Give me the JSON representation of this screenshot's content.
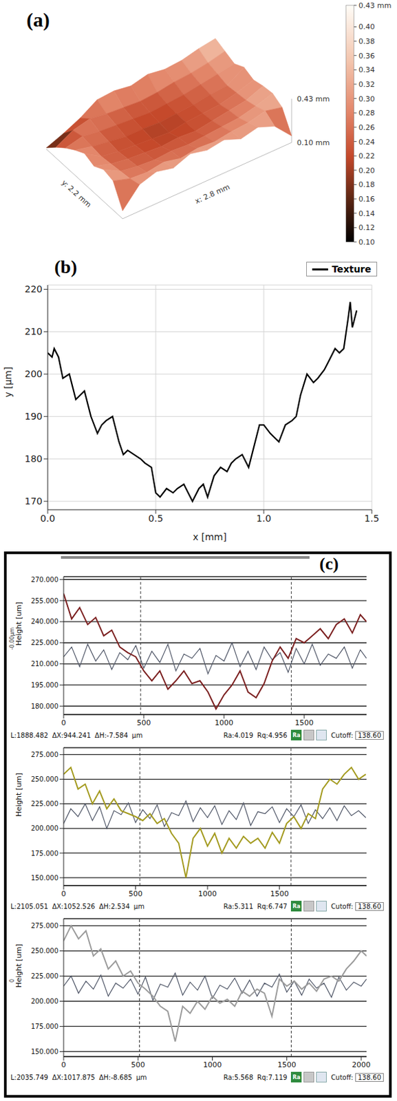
{
  "chart_data": [
    {
      "type": "surface",
      "panel": "(a)",
      "x_label": "x: 2.8 mm",
      "y_label": "y: 2.2 mm",
      "z_labels": [
        "0.43 mm",
        "0.10 mm"
      ],
      "heights": [
        [
          0.16,
          0.3,
          0.34,
          0.31,
          0.36,
          0.33,
          0.35,
          0.3,
          0.33,
          0.28,
          0.15
        ],
        [
          0.32,
          0.28,
          0.27,
          0.29,
          0.26,
          0.28,
          0.27,
          0.29,
          0.3,
          0.33,
          0.3
        ],
        [
          0.34,
          0.27,
          0.25,
          0.24,
          0.25,
          0.24,
          0.25,
          0.26,
          0.27,
          0.3,
          0.34
        ],
        [
          0.3,
          0.26,
          0.24,
          0.23,
          0.22,
          0.23,
          0.22,
          0.24,
          0.26,
          0.28,
          0.33
        ],
        [
          0.33,
          0.25,
          0.23,
          0.22,
          0.21,
          0.2,
          0.22,
          0.23,
          0.24,
          0.27,
          0.31
        ],
        [
          0.29,
          0.26,
          0.24,
          0.22,
          0.22,
          0.21,
          0.22,
          0.23,
          0.25,
          0.26,
          0.34
        ],
        [
          0.24,
          0.27,
          0.25,
          0.24,
          0.23,
          0.22,
          0.23,
          0.24,
          0.26,
          0.28,
          0.3
        ],
        [
          0.18,
          0.25,
          0.28,
          0.26,
          0.25,
          0.24,
          0.25,
          0.27,
          0.28,
          0.3,
          0.33
        ],
        [
          0.11,
          0.16,
          0.22,
          0.3,
          0.31,
          0.29,
          0.32,
          0.3,
          0.31,
          0.34,
          0.36
        ]
      ],
      "colorbar": {
        "range": [
          0.1,
          0.43
        ],
        "max_label": "0.43 mm",
        "ticks": [
          {
            "value": 0.1,
            "label": "0.10"
          },
          {
            "value": 0.12,
            "label": "0.12"
          },
          {
            "value": 0.14,
            "label": "0.14"
          },
          {
            "value": 0.16,
            "label": "0.16"
          },
          {
            "value": 0.18,
            "label": "0.18"
          },
          {
            "value": 0.2,
            "label": "0.20"
          },
          {
            "value": 0.22,
            "label": "0.22"
          },
          {
            "value": 0.24,
            "label": "0.24"
          },
          {
            "value": 0.26,
            "label": "0.26"
          },
          {
            "value": 0.28,
            "label": "0.28"
          },
          {
            "value": 0.3,
            "label": "0.30"
          },
          {
            "value": 0.32,
            "label": "0.32"
          },
          {
            "value": 0.34,
            "label": "0.34"
          },
          {
            "value": 0.36,
            "label": "0.36"
          },
          {
            "value": 0.38,
            "label": "0.38"
          },
          {
            "value": 0.4,
            "label": "0.40"
          }
        ]
      }
    },
    {
      "type": "line",
      "panel": "(b)",
      "xlabel": "x [mm]",
      "ylabel": "y [µm]",
      "x": [
        0,
        0.02,
        0.03,
        0.05,
        0.07,
        0.1,
        0.13,
        0.15,
        0.17,
        0.2,
        0.23,
        0.25,
        0.27,
        0.3,
        0.33,
        0.35,
        0.37,
        0.4,
        0.43,
        0.45,
        0.48,
        0.5,
        0.52,
        0.55,
        0.58,
        0.6,
        0.63,
        0.65,
        0.67,
        0.7,
        0.72,
        0.74,
        0.77,
        0.8,
        0.83,
        0.85,
        0.87,
        0.9,
        0.93,
        0.95,
        0.98,
        1,
        1.03,
        1.05,
        1.07,
        1.1,
        1.13,
        1.15,
        1.17,
        1.2,
        1.23,
        1.25,
        1.28,
        1.3,
        1.33,
        1.35,
        1.37,
        1.39,
        1.4,
        1.41,
        1.43
      ],
      "series": [
        {
          "name": "Texture",
          "color": "#000000",
          "values": [
            205,
            204,
            206,
            204,
            199,
            200,
            194,
            195,
            196,
            190,
            186,
            188,
            189,
            190,
            184,
            181,
            182,
            181,
            180,
            179,
            178,
            172,
            171,
            173,
            172,
            173,
            174,
            172,
            170,
            173,
            174,
            171,
            176,
            178,
            177,
            179,
            180,
            181,
            178,
            182,
            188,
            188,
            186,
            185,
            184,
            188,
            189,
            190,
            195,
            200,
            198,
            199,
            201,
            203,
            206,
            205,
            206,
            213,
            217,
            211,
            215
          ]
        }
      ],
      "xlim": [
        0,
        1.5
      ],
      "ylim": [
        168,
        221
      ],
      "xticks": [
        {
          "value": 0,
          "label": "0.0"
        },
        {
          "value": 0.5,
          "label": "0.5"
        },
        {
          "value": 1,
          "label": "1.0"
        },
        {
          "value": 1.5,
          "label": "1.5"
        }
      ],
      "yticks": [
        170,
        180,
        190,
        200,
        210,
        220
      ],
      "grid": true,
      "legend": "top-right"
    },
    {
      "type": "line",
      "panel": "(c)",
      "ylabel": "Height [um]",
      "side_label": "-0.00µm",
      "x": [
        0,
        50,
        100,
        150,
        200,
        250,
        300,
        350,
        400,
        450,
        500,
        550,
        600,
        650,
        700,
        750,
        800,
        850,
        900,
        950,
        1000,
        1050,
        1100,
        1150,
        1200,
        1250,
        1300,
        1350,
        1400,
        1450,
        1500,
        1550,
        1600,
        1650,
        1700,
        1750,
        1800,
        1850,
        1888
      ],
      "series": [
        {
          "color": "#7b1f1f",
          "values": [
            260,
            242,
            250,
            238,
            243,
            230,
            234,
            222,
            218,
            215,
            205,
            198,
            205,
            192,
            198,
            205,
            196,
            198,
            190,
            178,
            188,
            195,
            205,
            190,
            186,
            196,
            212,
            222,
            214,
            228,
            225,
            230,
            235,
            228,
            238,
            242,
            232,
            245,
            240
          ]
        },
        {
          "color": "#4e5566",
          "values": [
            215,
            222,
            208,
            224,
            212,
            220,
            206,
            218,
            213,
            223,
            207,
            219,
            211,
            224,
            205,
            217,
            214,
            221,
            203,
            216,
            212,
            225,
            208,
            219,
            206,
            222,
            213,
            218,
            204,
            221,
            210,
            224,
            209,
            217,
            214,
            222,
            207,
            220,
            214
          ]
        }
      ],
      "xlim": [
        0,
        1888.482
      ],
      "ylim": [
        174,
        272
      ],
      "xticks": [
        0,
        500,
        1000,
        1500
      ],
      "yticks": [
        {
          "value": 180,
          "label": "180.000"
        },
        {
          "value": 195,
          "label": "195.000"
        },
        {
          "value": 210,
          "label": "210.000"
        },
        {
          "value": 225,
          "label": "225.000"
        },
        {
          "value": 240,
          "label": "240.000"
        },
        {
          "value": 255,
          "label": "255.000"
        },
        {
          "value": 270,
          "label": "270.000"
        }
      ],
      "grid": "y",
      "cursors": [
        480,
        1420
      ],
      "footer": [
        "L:1888.482",
        "ΔX:944.241",
        "ΔH:-7.584",
        "µm"
      ],
      "roughness": [
        "Ra:4.019",
        "Rq:4.956"
      ],
      "button": "Ra",
      "cutoff_label": "Cutoff:",
      "cutoff": "138.60"
    },
    {
      "type": "line",
      "ylabel": "Height [um]",
      "x": [
        0,
        50,
        100,
        150,
        200,
        250,
        300,
        350,
        400,
        450,
        500,
        550,
        600,
        650,
        700,
        750,
        800,
        850,
        900,
        950,
        1000,
        1050,
        1100,
        1150,
        1200,
        1250,
        1300,
        1350,
        1400,
        1450,
        1500,
        1550,
        1600,
        1650,
        1700,
        1750,
        1800,
        1850,
        1900,
        1950,
        2000,
        2050,
        2100
      ],
      "series": [
        {
          "color": "#a39a1e",
          "values": [
            255,
            262,
            240,
            245,
            225,
            238,
            220,
            230,
            218,
            215,
            212,
            208,
            215,
            205,
            210,
            195,
            185,
            150,
            190,
            200,
            182,
            195,
            175,
            190,
            180,
            192,
            185,
            190,
            180,
            196,
            185,
            205,
            212,
            200,
            215,
            210,
            240,
            250,
            245,
            255,
            262,
            250,
            255
          ]
        },
        {
          "color": "#4e5566",
          "values": [
            205,
            220,
            212,
            225,
            208,
            222,
            200,
            218,
            214,
            226,
            206,
            219,
            210,
            224,
            202,
            216,
            213,
            228,
            207,
            221,
            211,
            223,
            204,
            218,
            209,
            226,
            203,
            217,
            215,
            222,
            206,
            220,
            212,
            224,
            205,
            219,
            210,
            221,
            208,
            223,
            213,
            218,
            211
          ]
        }
      ],
      "xlim": [
        0,
        2105.051
      ],
      "ylim": [
        142,
        282
      ],
      "xticks": [
        0,
        500,
        1000,
        1500
      ],
      "yticks": [
        {
          "value": 150,
          "label": "150.000"
        },
        {
          "value": 175,
          "label": "175.000"
        },
        {
          "value": 200,
          "label": "200.000"
        },
        {
          "value": 225,
          "label": "225.000"
        },
        {
          "value": 250,
          "label": "250.000"
        },
        {
          "value": 275,
          "label": "275.000"
        }
      ],
      "grid": "y",
      "cursors": [
        530,
        1580
      ],
      "footer": [
        "L:2105.051",
        "ΔX:1052.526",
        "ΔH:2.534",
        "µm"
      ],
      "roughness": [
        "Ra:5.311",
        "Rq:6.747"
      ],
      "button": "Ra",
      "cutoff_label": "Cutoff:",
      "cutoff": "138.60"
    },
    {
      "type": "line",
      "ylabel": "Height [um]",
      "side_label": "0",
      "x": [
        0,
        50,
        100,
        150,
        200,
        250,
        300,
        350,
        400,
        450,
        500,
        550,
        600,
        650,
        700,
        750,
        800,
        850,
        900,
        950,
        1000,
        1050,
        1100,
        1150,
        1200,
        1250,
        1300,
        1350,
        1400,
        1450,
        1500,
        1550,
        1600,
        1650,
        1700,
        1750,
        1800,
        1850,
        1900,
        1950,
        2000,
        2035.749
      ],
      "series": [
        {
          "color": "#9b9b9b",
          "values": [
            260,
            275,
            262,
            270,
            245,
            252,
            232,
            240,
            225,
            230,
            218,
            212,
            205,
            195,
            190,
            160,
            195,
            188,
            200,
            192,
            205,
            198,
            202,
            195,
            210,
            205,
            212,
            208,
            185,
            222,
            215,
            220,
            212,
            218,
            210,
            222,
            225,
            220,
            232,
            240,
            250,
            245
          ]
        },
        {
          "color": "#4e5566",
          "values": [
            215,
            225,
            208,
            220,
            212,
            226,
            205,
            218,
            213,
            222,
            207,
            224,
            201,
            217,
            214,
            228,
            206,
            219,
            211,
            225,
            203,
            216,
            212,
            223,
            208,
            221,
            205,
            218,
            214,
            227,
            209,
            220,
            206,
            222,
            213,
            218,
            204,
            224,
            211,
            219,
            215,
            222
          ]
        }
      ],
      "xlim": [
        0,
        2035.749
      ],
      "ylim": [
        145,
        282
      ],
      "xticks": [
        0,
        500,
        1000,
        1500,
        2000
      ],
      "yticks": [
        {
          "value": 150,
          "label": "150.000"
        },
        {
          "value": 175,
          "label": "175.000"
        },
        {
          "value": 200,
          "label": "200.000"
        },
        {
          "value": 225,
          "label": "225.000"
        },
        {
          "value": 250,
          "label": "250.000"
        },
        {
          "value": 275,
          "label": "275.000"
        }
      ],
      "grid": "y",
      "cursors": [
        510,
        1530
      ],
      "footer": [
        "L:2035.749",
        "ΔX:1017.875",
        "ΔH:-8.685",
        "µm"
      ],
      "roughness": [
        "Ra:5.568",
        "Rq:7.119"
      ],
      "button": "Ra",
      "cutoff_label": "Cutoff:",
      "cutoff": "138.60"
    }
  ]
}
